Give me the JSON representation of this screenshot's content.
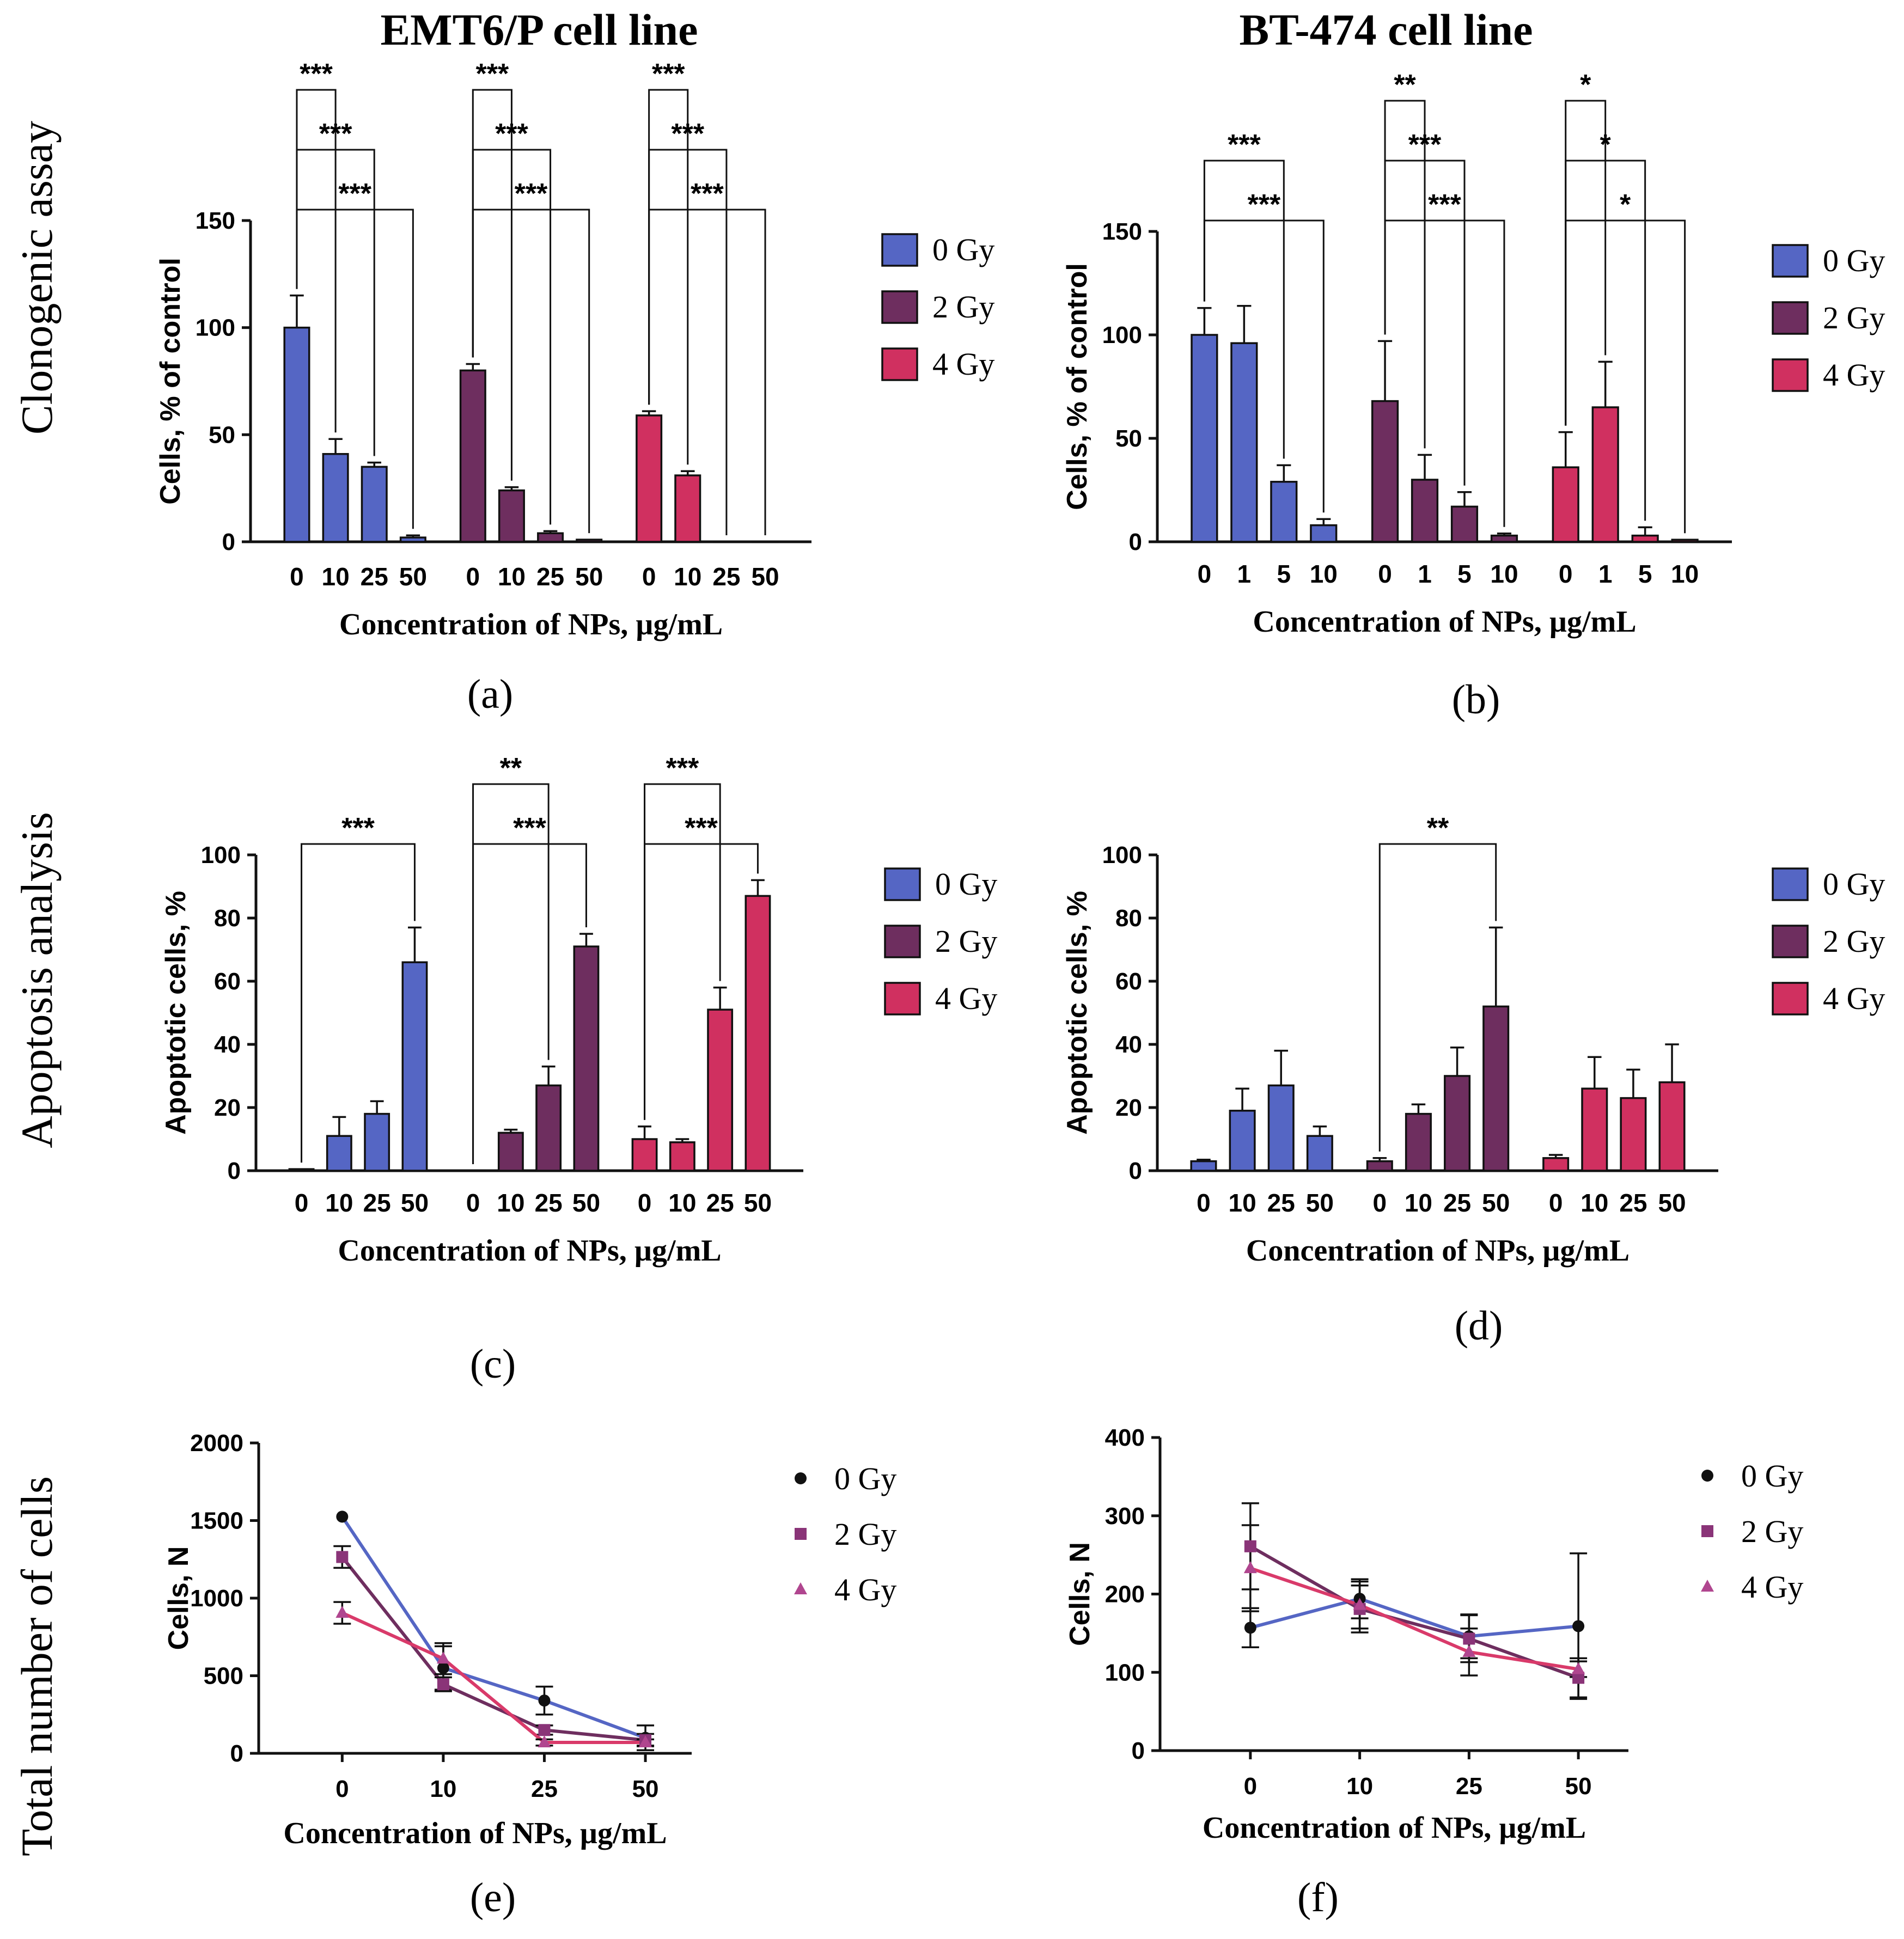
{
  "figure": {
    "column_titles": [
      "EMT6/P cell line",
      "BT-474 cell line"
    ],
    "row_titles": [
      "Clonogenic assay",
      "Apoptosis analysis",
      "Total number of cells"
    ],
    "legend_labels": [
      "0 Gy",
      "2 Gy",
      "4 Gy"
    ],
    "colors": {
      "0 Gy": "#5566c4",
      "2 Gy": "#6e2e5f",
      "4 Gy": "#d03060",
      "line0": "#5566c4",
      "line2": "#6e2e5f",
      "line4": "#d93a6a",
      "marker0": "#111111",
      "marker2": "#8a3478",
      "marker4": "#b0468f"
    }
  },
  "chart_data": [
    {
      "panel": "(a)",
      "type": "bar",
      "ylabel": "Cells, % of control",
      "xlabel": "Concentration of NPs, µg/mL",
      "ylim": [
        0,
        150
      ],
      "yticks": [
        "0",
        "50",
        "100",
        "150"
      ],
      "categories": [
        "0",
        "10",
        "25",
        "50"
      ],
      "series": [
        {
          "name": "0 Gy",
          "values": [
            100,
            41,
            35,
            2
          ],
          "errors": [
            15,
            7,
            2,
            1
          ]
        },
        {
          "name": "2 Gy",
          "values": [
            80,
            24,
            4,
            1
          ],
          "errors": [
            3,
            1.5,
            1,
            0
          ]
        },
        {
          "name": "4 Gy",
          "values": [
            59,
            31,
            0,
            0
          ],
          "errors": [
            2,
            2,
            0,
            0
          ]
        }
      ],
      "significance": [
        {
          "group": 0,
          "from": 0,
          "to": 1,
          "label": "***"
        },
        {
          "group": 0,
          "from": 0,
          "to": 2,
          "label": "***"
        },
        {
          "group": 0,
          "from": 0,
          "to": 3,
          "label": "***"
        },
        {
          "group": 1,
          "from": 0,
          "to": 1,
          "label": "***"
        },
        {
          "group": 1,
          "from": 0,
          "to": 2,
          "label": "***"
        },
        {
          "group": 1,
          "from": 0,
          "to": 3,
          "label": "***"
        },
        {
          "group": 2,
          "from": 0,
          "to": 1,
          "label": "***"
        },
        {
          "group": 2,
          "from": 0,
          "to": 2,
          "label": "***"
        },
        {
          "group": 2,
          "from": 0,
          "to": 3,
          "label": "***"
        }
      ]
    },
    {
      "panel": "(b)",
      "type": "bar",
      "ylabel": "Cells, % of control",
      "xlabel": "Concentration of NPs, µg/mL",
      "ylim": [
        0,
        150
      ],
      "yticks": [
        "0",
        "50",
        "100",
        "150"
      ],
      "categories": [
        "0",
        "1",
        "5",
        "10"
      ],
      "series": [
        {
          "name": "0 Gy",
          "values": [
            100,
            96,
            29,
            8
          ],
          "errors": [
            13,
            18,
            8,
            3
          ]
        },
        {
          "name": "2 Gy",
          "values": [
            68,
            30,
            17,
            3
          ],
          "errors": [
            29,
            12,
            7,
            1
          ]
        },
        {
          "name": "4 Gy",
          "values": [
            36,
            65,
            3,
            1
          ],
          "errors": [
            17,
            22,
            4,
            0
          ]
        }
      ],
      "significance": [
        {
          "group": 0,
          "from": 0,
          "to": 2,
          "label": "***"
        },
        {
          "group": 0,
          "from": 0,
          "to": 3,
          "label": "***"
        },
        {
          "group": 1,
          "from": 0,
          "to": 1,
          "label": "**"
        },
        {
          "group": 1,
          "from": 0,
          "to": 2,
          "label": "***"
        },
        {
          "group": 1,
          "from": 0,
          "to": 3,
          "label": "***"
        },
        {
          "group": 2,
          "from": 0,
          "to": 1,
          "label": "*"
        },
        {
          "group": 2,
          "from": 0,
          "to": 2,
          "label": "*"
        },
        {
          "group": 2,
          "from": 0,
          "to": 3,
          "label": "*"
        }
      ]
    },
    {
      "panel": "(c)",
      "type": "bar",
      "ylabel": "Apoptotic cells, %",
      "xlabel": "Concentration of NPs, µg/mL",
      "ylim": [
        0,
        100
      ],
      "yticks": [
        "0",
        "20",
        "40",
        "60",
        "80",
        "100"
      ],
      "categories": [
        "0",
        "10",
        "25",
        "50"
      ],
      "series": [
        {
          "name": "0 Gy",
          "values": [
            0.5,
            11,
            18,
            66
          ],
          "errors": [
            0,
            6,
            4,
            11
          ]
        },
        {
          "name": "2 Gy",
          "values": [
            0,
            12,
            27,
            71
          ],
          "errors": [
            0,
            1,
            6,
            4
          ]
        },
        {
          "name": "4 Gy",
          "values": [
            10,
            9,
            51,
            87
          ],
          "errors": [
            4,
            1,
            7,
            5
          ]
        }
      ],
      "significance": [
        {
          "group": 0,
          "from": 0,
          "to": 3,
          "label": "***"
        },
        {
          "group": 1,
          "from": 0,
          "to": 2,
          "label": "**"
        },
        {
          "group": 1,
          "from": 0,
          "to": 3,
          "label": "***"
        },
        {
          "group": 2,
          "from": 0,
          "to": 2,
          "label": "***"
        },
        {
          "group": 2,
          "from": 0,
          "to": 3,
          "label": "***"
        }
      ]
    },
    {
      "panel": "(d)",
      "type": "bar",
      "ylabel": "Apoptotic cells, %",
      "xlabel": "Concentration of NPs, µg/mL",
      "ylim": [
        0,
        100
      ],
      "yticks": [
        "0",
        "20",
        "40",
        "60",
        "80",
        "100"
      ],
      "categories": [
        "0",
        "10",
        "25",
        "50"
      ],
      "series": [
        {
          "name": "0 Gy",
          "values": [
            3,
            19,
            27,
            11
          ],
          "errors": [
            0.5,
            7,
            11,
            3
          ]
        },
        {
          "name": "2 Gy",
          "values": [
            3,
            18,
            30,
            52
          ],
          "errors": [
            1,
            3,
            9,
            25
          ]
        },
        {
          "name": "4 Gy",
          "values": [
            4,
            26,
            23,
            28
          ],
          "errors": [
            1,
            10,
            9,
            12
          ]
        }
      ],
      "significance": [
        {
          "group": 1,
          "from": 0,
          "to": 3,
          "label": "**"
        }
      ]
    },
    {
      "panel": "(e)",
      "type": "line",
      "ylabel": "Cells, N",
      "xlabel": "Concentration of NPs, µg/mL",
      "ylim": [
        0,
        2000
      ],
      "yticks": [
        "0",
        "500",
        "1000",
        "1500",
        "2000"
      ],
      "categories": [
        "0",
        "10",
        "25",
        "50"
      ],
      "series": [
        {
          "name": "0 Gy",
          "values": [
            1525,
            550,
            340,
            100
          ],
          "errors": [
            0,
            140,
            90,
            80
          ]
        },
        {
          "name": "2 Gy",
          "values": [
            1265,
            445,
            150,
            85
          ],
          "errors": [
            70,
            45,
            30,
            40
          ]
        },
        {
          "name": "4 Gy",
          "values": [
            905,
            610,
            70,
            70
          ],
          "errors": [
            70,
            100,
            20,
            20
          ]
        }
      ]
    },
    {
      "panel": "(f)",
      "type": "line",
      "ylabel": "Cells, N",
      "xlabel": "Concentration of NPs, µg/mL",
      "ylim": [
        0,
        400
      ],
      "yticks": [
        "0",
        "100",
        "200",
        "300",
        "400"
      ],
      "categories": [
        "0",
        "10",
        "25",
        "50"
      ],
      "series": [
        {
          "name": "0 Gy",
          "values": [
            157,
            194,
            146,
            159
          ],
          "errors": [
            25,
            25,
            28,
            93
          ]
        },
        {
          "name": "2 Gy",
          "values": [
            261,
            181,
            143,
            93
          ],
          "errors": [
            55,
            30,
            30,
            25
          ]
        },
        {
          "name": "4 Gy",
          "values": [
            233,
            186,
            126,
            104
          ],
          "errors": [
            55,
            30,
            30,
            10
          ]
        }
      ]
    }
  ]
}
